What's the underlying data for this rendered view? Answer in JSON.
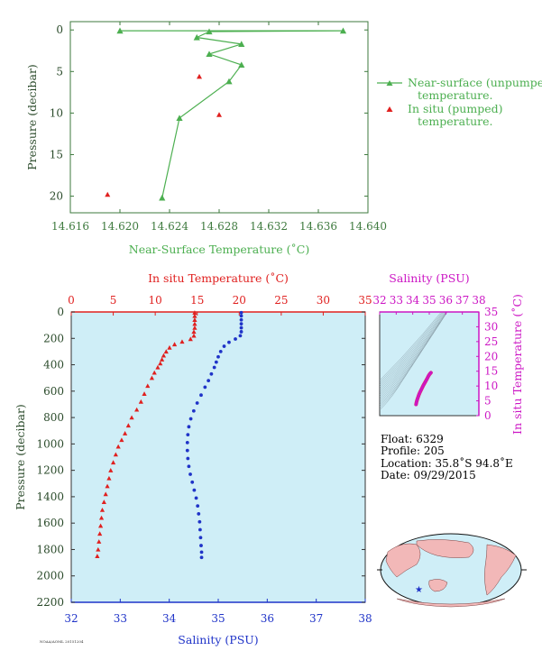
{
  "colors": {
    "axis_green": "#3e7a3e",
    "near_surface": "#4caf50",
    "in_situ_red": "#e0201f",
    "salinity_blue": "#1f33c8",
    "magenta": "#cc16c4",
    "panel_bg": "#cfeef7",
    "dark_label": "#2a4a2a"
  },
  "chart_data": [
    {
      "id": "near-surface-chart",
      "type": "scatter",
      "xlabel": "Near-Surface Temperature (˚C)",
      "ylabel": "Pressure (decibar)",
      "xlim": [
        14.616,
        14.64
      ],
      "ylim": [
        22,
        -1
      ],
      "xticks": [
        "14.616",
        "14.620",
        "14.624",
        "14.628",
        "14.632",
        "14.636",
        "14.640"
      ],
      "yticks": [
        "0",
        "5",
        "10",
        "15",
        "20"
      ],
      "legend_placement": "right",
      "series": [
        {
          "name": "Near-surface (unpumped) temperature.",
          "marker": "triangle-line",
          "points": [
            [
              14.62,
              0.1
            ],
            [
              14.638,
              0.1
            ],
            [
              14.6272,
              0.2
            ],
            [
              14.6262,
              0.9
            ],
            [
              14.6298,
              1.7
            ],
            [
              14.6272,
              2.9
            ],
            [
              14.6298,
              4.2
            ],
            [
              14.6288,
              6.2
            ],
            [
              14.6248,
              10.6
            ],
            [
              14.6234,
              20.2
            ]
          ]
        },
        {
          "name": "In situ (pumped) temperature.",
          "marker": "triangle",
          "points": [
            [
              14.6264,
              5.6
            ],
            [
              14.628,
              10.2
            ],
            [
              14.619,
              19.8
            ]
          ]
        }
      ]
    },
    {
      "id": "profile-chart",
      "type": "scatter",
      "title_top": "In situ Temperature (˚C)",
      "xlabel": "Salinity (PSU)",
      "ylabel": "Pressure (decibar)",
      "temp_ticks": [
        "0",
        "5",
        "10",
        "15",
        "20",
        "25",
        "30",
        "35"
      ],
      "sal_ticks": [
        "32",
        "33",
        "34",
        "35",
        "36",
        "37",
        "38"
      ],
      "y_ticks": [
        "0",
        "200",
        "400",
        "600",
        "800",
        "1000",
        "1200",
        "1400",
        "1600",
        "1800",
        "2000",
        "2200"
      ],
      "temp_lim": [
        0,
        35
      ],
      "sal_lim": [
        32,
        38
      ],
      "pressure_lim": [
        0,
        2200
      ],
      "series": [
        {
          "name": "In situ Temperature (˚C)",
          "marker": "triangle",
          "points": [
            [
              14.7,
              5
            ],
            [
              14.7,
              30
            ],
            [
              14.7,
              60
            ],
            [
              14.7,
              90
            ],
            [
              14.7,
              120
            ],
            [
              14.6,
              150
            ],
            [
              14.6,
              180
            ],
            [
              14.2,
              205
            ],
            [
              13.2,
              225
            ],
            [
              12.3,
              245
            ],
            [
              11.7,
              270
            ],
            [
              11.3,
              300
            ],
            [
              11.0,
              330
            ],
            [
              10.8,
              360
            ],
            [
              10.6,
              390
            ],
            [
              10.3,
              420
            ],
            [
              9.9,
              460
            ],
            [
              9.6,
              500
            ],
            [
              9.1,
              560
            ],
            [
              8.7,
              620
            ],
            [
              8.3,
              680
            ],
            [
              7.8,
              740
            ],
            [
              7.2,
              800
            ],
            [
              6.8,
              860
            ],
            [
              6.4,
              920
            ],
            [
              6.0,
              970
            ],
            [
              5.6,
              1020
            ],
            [
              5.3,
              1080
            ],
            [
              5.0,
              1140
            ],
            [
              4.7,
              1200
            ],
            [
              4.5,
              1260
            ],
            [
              4.3,
              1320
            ],
            [
              4.1,
              1380
            ],
            [
              3.9,
              1440
            ],
            [
              3.7,
              1500
            ],
            [
              3.6,
              1560
            ],
            [
              3.5,
              1620
            ],
            [
              3.4,
              1680
            ],
            [
              3.3,
              1740
            ],
            [
              3.2,
              1800
            ],
            [
              3.1,
              1850
            ]
          ]
        },
        {
          "name": "Salinity (PSU)",
          "marker": "circle",
          "points": [
            [
              35.47,
              5
            ],
            [
              35.47,
              30
            ],
            [
              35.47,
              60
            ],
            [
              35.47,
              90
            ],
            [
              35.47,
              120
            ],
            [
              35.47,
              150
            ],
            [
              35.45,
              180
            ],
            [
              35.35,
              205
            ],
            [
              35.22,
              230
            ],
            [
              35.12,
              260
            ],
            [
              35.05,
              300
            ],
            [
              35.0,
              340
            ],
            [
              34.96,
              380
            ],
            [
              34.92,
              420
            ],
            [
              34.86,
              470
            ],
            [
              34.8,
              520
            ],
            [
              34.73,
              570
            ],
            [
              34.65,
              630
            ],
            [
              34.57,
              690
            ],
            [
              34.5,
              750
            ],
            [
              34.44,
              810
            ],
            [
              34.4,
              870
            ],
            [
              34.38,
              930
            ],
            [
              34.37,
              990
            ],
            [
              34.37,
              1050
            ],
            [
              34.38,
              1110
            ],
            [
              34.4,
              1170
            ],
            [
              34.43,
              1230
            ],
            [
              34.47,
              1290
            ],
            [
              34.51,
              1350
            ],
            [
              34.55,
              1410
            ],
            [
              34.58,
              1470
            ],
            [
              34.6,
              1530
            ],
            [
              34.62,
              1590
            ],
            [
              34.63,
              1650
            ],
            [
              34.64,
              1710
            ],
            [
              34.65,
              1770
            ],
            [
              34.66,
              1820
            ],
            [
              34.66,
              1860
            ]
          ]
        }
      ]
    },
    {
      "id": "ts-chart",
      "type": "scatter",
      "title_top": "Salinity (PSU)",
      "ylabel_right": "In situ Temperature (˚C)",
      "sal_ticks": [
        "32",
        "33",
        "34",
        "35",
        "36",
        "37",
        "38"
      ],
      "temp_ticks": [
        "0",
        "5",
        "10",
        "15",
        "20",
        "25",
        "30",
        "35"
      ],
      "sal_lim": [
        32,
        38
      ],
      "temp_lim": [
        0,
        35
      ],
      "points": [
        [
          34.2,
          3.8
        ],
        [
          34.23,
          4.6
        ],
        [
          34.27,
          5.4
        ],
        [
          34.32,
          6.2
        ],
        [
          34.37,
          7.0
        ],
        [
          34.43,
          7.8
        ],
        [
          34.5,
          8.6
        ],
        [
          34.57,
          9.4
        ],
        [
          34.64,
          10.2
        ],
        [
          34.72,
          11.0
        ],
        [
          34.8,
          11.8
        ],
        [
          34.88,
          12.6
        ],
        [
          34.95,
          13.4
        ],
        [
          35.02,
          14.0
        ],
        [
          35.1,
          14.5
        ]
      ]
    }
  ],
  "legend": {
    "near_surface_line1": "Near-surface (unpumped)",
    "near_surface_line2": "temperature.",
    "in_situ_line1": "In situ (pumped)",
    "in_situ_line2": "temperature."
  },
  "float_info": {
    "float": "Float:  6329",
    "profile": "Profile:  205",
    "location": "Location:  35.8˚S  94.8˚E",
    "date": "Date:  09/29/2015"
  },
  "footer": {
    "small_text": "NOAA/AOML 20151204"
  }
}
